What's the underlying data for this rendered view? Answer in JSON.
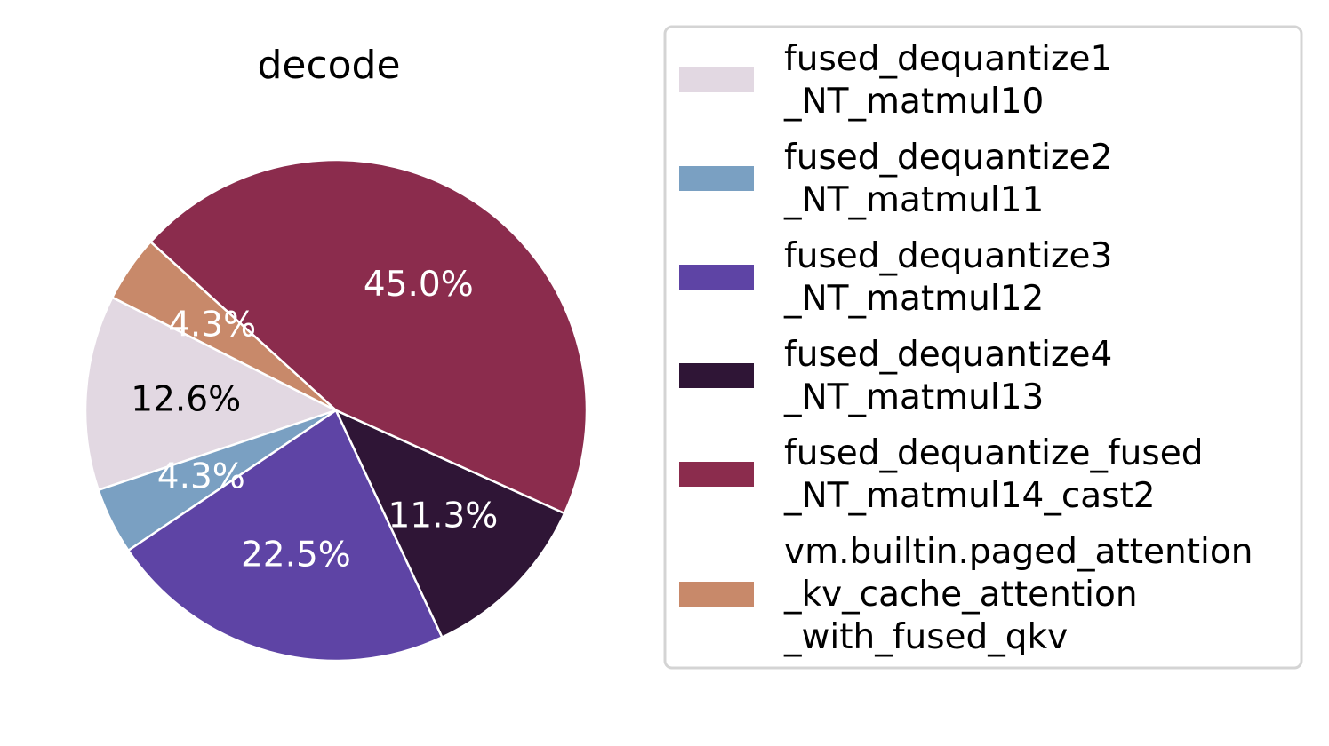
{
  "chart_data": {
    "type": "pie",
    "title": "decode",
    "legend_position": "right",
    "slices": [
      {
        "label": "fused_dequantize1_NT_matmul10",
        "legend_lines": [
          "fused_dequantize1",
          "_NT_matmul10"
        ],
        "value": 12.6,
        "pct_label": "12.6%",
        "color": "#e2d8e2",
        "label_color": "#000000"
      },
      {
        "label": "fused_dequantize2_NT_matmul11",
        "legend_lines": [
          "fused_dequantize2",
          "_NT_matmul11"
        ],
        "value": 4.3,
        "pct_label": "4.3%",
        "color": "#7aa0c2",
        "label_color": "#ffffff"
      },
      {
        "label": "fused_dequantize3_NT_matmul12",
        "legend_lines": [
          "fused_dequantize3",
          "_NT_matmul12"
        ],
        "value": 22.5,
        "pct_label": "22.5%",
        "color": "#5e44a5",
        "label_color": "#ffffff"
      },
      {
        "label": "fused_dequantize4_NT_matmul13",
        "legend_lines": [
          "fused_dequantize4",
          "_NT_matmul13"
        ],
        "value": 11.3,
        "pct_label": "11.3%",
        "color": "#2f1536",
        "label_color": "#ffffff"
      },
      {
        "label": "fused_dequantize_fused_NT_matmul14_cast2",
        "legend_lines": [
          "fused_dequantize_fused",
          "_NT_matmul14_cast2"
        ],
        "value": 45.0,
        "pct_label": "45.0%",
        "color": "#8b2c4d",
        "label_color": "#ffffff"
      },
      {
        "label": "vm.builtin.paged_attention_kv_cache_attention_with_fused_qkv",
        "legend_lines": [
          "vm.builtin.paged_attention",
          "_kv_cache_attention",
          "_with_fused_qkv"
        ],
        "value": 4.3,
        "pct_label": "4.3%",
        "color": "#c8896a",
        "label_color": "#ffffff"
      }
    ]
  }
}
